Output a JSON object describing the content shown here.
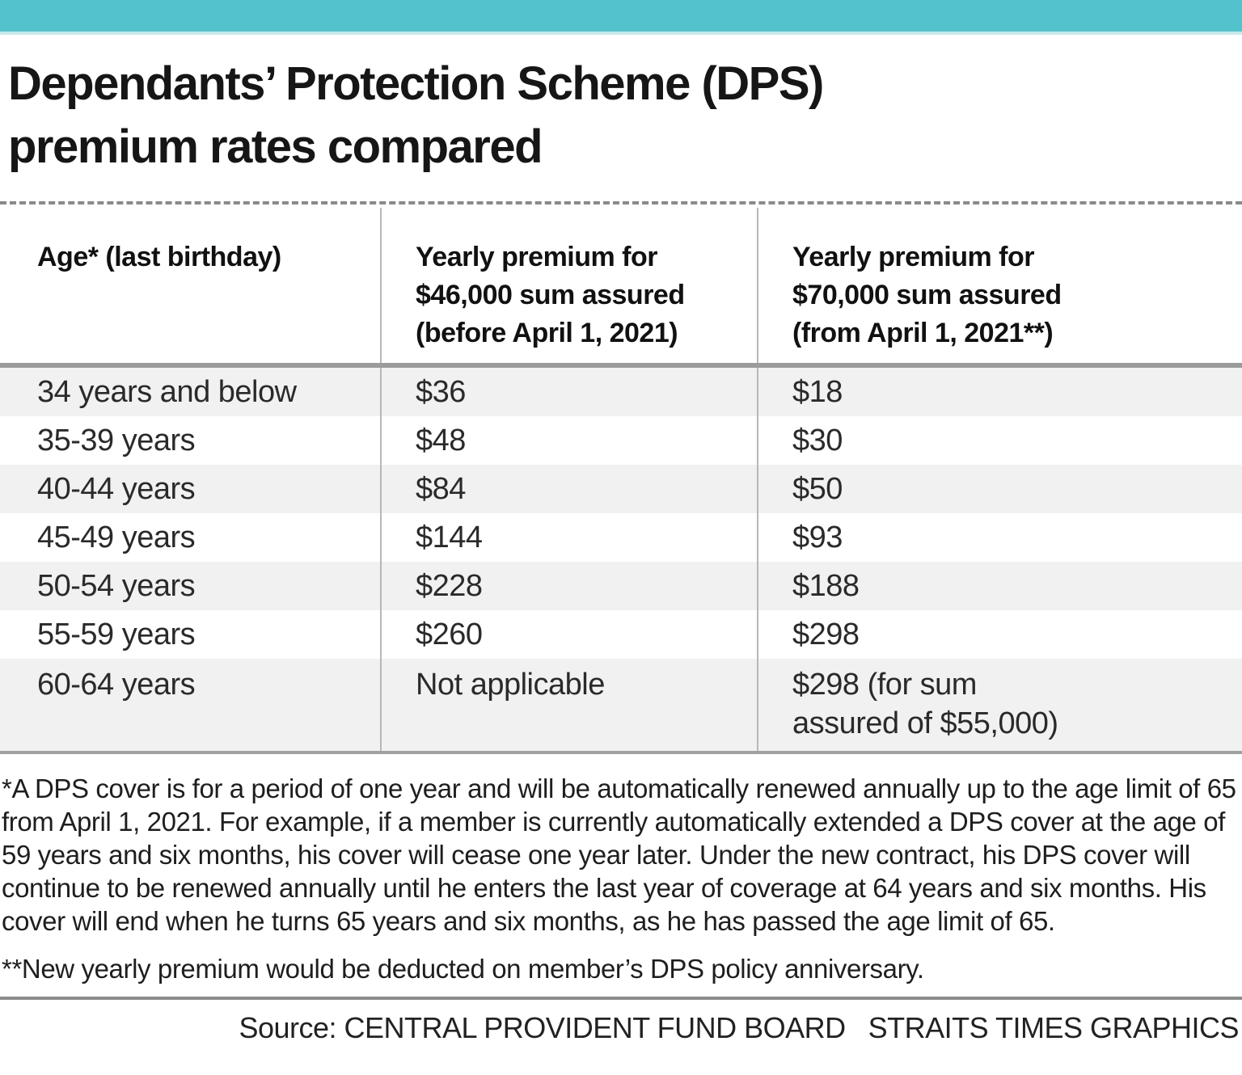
{
  "colors": {
    "accent": "#54c2cc",
    "accent_light": "#c9e9ec",
    "row_stripe": "#f1f1f2",
    "rule_gray": "#9b9b9b"
  },
  "title": "Dependants’ Protection Scheme (DPS)\npremium rates compared",
  "table": {
    "columns": [
      {
        "header": "Age* (last birthday)"
      },
      {
        "header": "Yearly premium for\n$46,000 sum assured\n(before April 1, 2021)"
      },
      {
        "header": "Yearly premium for\n$70,000 sum assured\n(from April 1, 2021**)"
      }
    ],
    "rows": [
      [
        "34 years and below",
        "$36",
        "$18"
      ],
      [
        "35-39 years",
        "$48",
        "$30"
      ],
      [
        "40-44 years",
        "$84",
        "$50"
      ],
      [
        "45-49 years",
        "$144",
        "$93"
      ],
      [
        "50-54 years",
        "$228",
        "$188"
      ],
      [
        "55-59 years",
        "$260",
        "$298"
      ],
      [
        "60-64 years",
        "Not applicable",
        "$298 (for sum\nassured of $55,000)"
      ]
    ]
  },
  "footnotes": [
    "*A DPS cover is for a period of one year and will be automatically renewed annually up to the age limit of 65 from April 1, 2021. For example, if a member is currently automatically extended a DPS cover at the age of 59 years and six months, his cover will cease one year later. Under the new contract, his DPS cover will continue to be renewed annually until he enters the last year of coverage at 64 years and six months. His cover will end when he turns 65 years and six months, as he has passed the age limit of 65.",
    "**New yearly premium would be deducted on member’s DPS policy anniversary."
  ],
  "source": {
    "label": "Source: CENTRAL PROVIDENT FUND BOARD",
    "credit": "STRAITS TIMES GRAPHICS"
  },
  "chart_data": {
    "type": "table",
    "title": "Dependants’ Protection Scheme (DPS) premium rates compared",
    "columns": [
      "Age* (last birthday)",
      "Yearly premium for $46,000 sum assured (before April 1, 2021)",
      "Yearly premium for $70,000 sum assured (from April 1, 2021**)"
    ],
    "rows": [
      [
        "34 years and below",
        "$36",
        "$18"
      ],
      [
        "35-39 years",
        "$48",
        "$30"
      ],
      [
        "40-44 years",
        "$84",
        "$50"
      ],
      [
        "45-49 years",
        "$144",
        "$93"
      ],
      [
        "50-54 years",
        "$228",
        "$188"
      ],
      [
        "55-59 years",
        "$260",
        "$298"
      ],
      [
        "60-64 years",
        "Not applicable",
        "$298 (for sum assured of $55,000)"
      ]
    ],
    "footnotes": [
      "*A DPS cover is for a period of one year and will be automatically renewed annually up to the age limit of 65 from April 1, 2021. For example, if a member is currently automatically extended a DPS cover at the age of 59 years and six months, his cover will cease one year later. Under the new contract, his DPS cover will continue to be renewed annually until he enters the last year of coverage at 64 years and six months. His cover will end when he turns 65 years and six months, as he has passed the age limit of 65.",
      "**New yearly premium would be deducted on member’s DPS policy anniversary."
    ],
    "source": "CENTRAL PROVIDENT FUND BOARD",
    "credit": "STRAITS TIMES GRAPHICS"
  }
}
